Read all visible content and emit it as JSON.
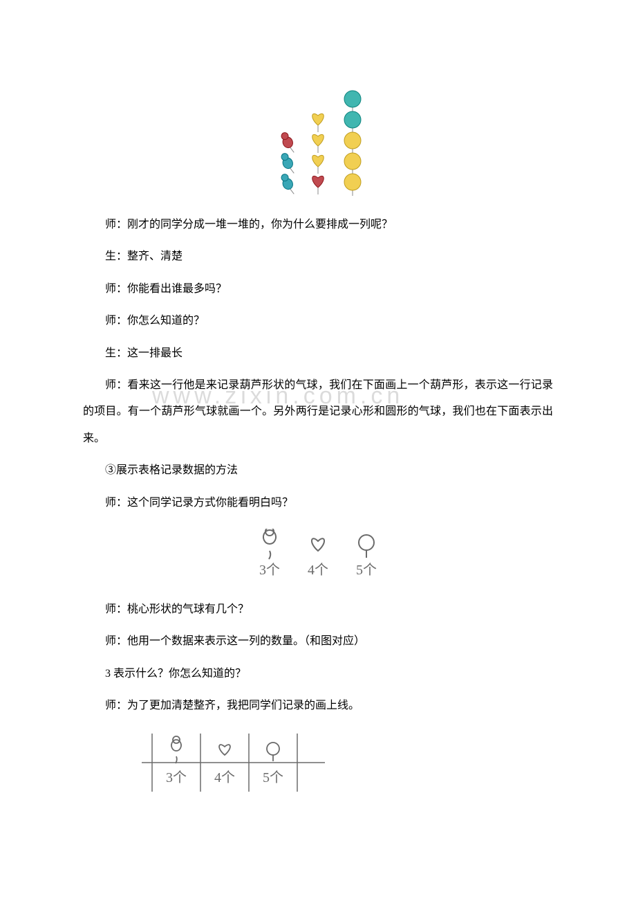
{
  "watermark": "www.zixin.com.cn",
  "balloon_illustration": {
    "columns": [
      {
        "kind": "gourd",
        "count": 3,
        "colors": [
          "#c04a50",
          "#3aa7b6",
          "#3aa7b6"
        ]
      },
      {
        "kind": "heart",
        "count": 4,
        "colors": [
          "#f1cf52",
          "#f1cf52",
          "#f1cf52",
          "#c04a50"
        ]
      },
      {
        "kind": "circle",
        "count": 5,
        "colors": [
          "#41b6b0",
          "#41b6b0",
          "#f1cf52",
          "#f1cf52",
          "#f1cf52"
        ]
      }
    ]
  },
  "lines": {
    "l1": "师：刚才的同学分成一堆一堆的，你为什么要排成一列呢？",
    "l2": "生：整齐、清楚",
    "l3": "师：你能看出谁最多吗？",
    "l4": "师：你怎么知道的？",
    "l5": "生：这一排最长",
    "l6": "师：看来这一行他是来记录葫芦形状的气球，我们在下面画上一个葫芦形，表示这一行记录的项目。有一个葫芦形气球就画一个。另外两行是记录心形和圆形的气球，我们也在下面表示出来。",
    "l7": "③展示表格记录数据的方法",
    "l8": "师：这个同学记录方式你能看明白吗？",
    "l9": "师：桃心形状的气球有几个？",
    "l10": "师：他用一个数据来表示这一列的数量。（和图对应）",
    "l11": "3 表示什么？你怎么知道的？",
    "l12": "师：为了更加清楚整齐，我把同学们记录的画上线。"
  },
  "icon_row": {
    "items": [
      {
        "shape": "gourd",
        "label": "3个"
      },
      {
        "shape": "heart",
        "label": "4个"
      },
      {
        "shape": "circle-balloon",
        "label": "5个"
      }
    ],
    "label_color": "#6a6a6a",
    "icon_color": "#6a6a6a"
  },
  "icon_table": {
    "items": [
      {
        "shape": "gourd",
        "label": "3个"
      },
      {
        "shape": "heart",
        "label": "4个"
      },
      {
        "shape": "circle-balloon",
        "label": "5个"
      }
    ],
    "label_color": "#6a6a6a",
    "icon_color": "#6a6a6a",
    "line_color": "#6a6a6a"
  }
}
